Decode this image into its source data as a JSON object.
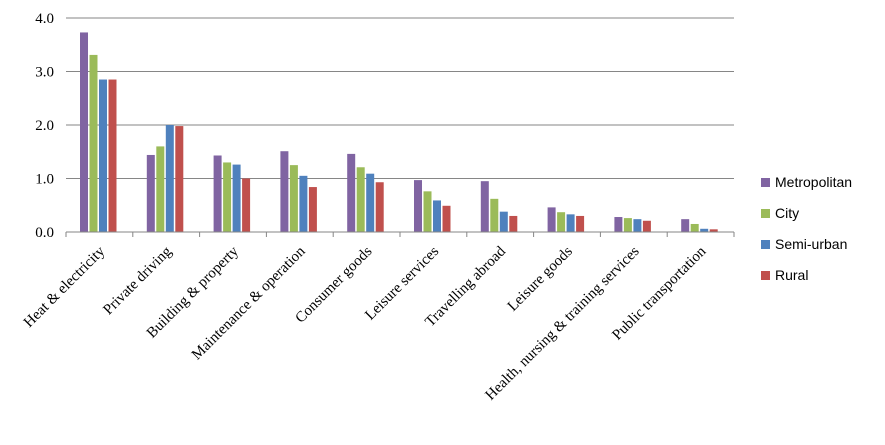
{
  "chart_data": {
    "type": "bar",
    "title": "",
    "xlabel": "",
    "ylabel": "",
    "ylim": [
      0,
      4
    ],
    "yticks": [
      "0.0",
      "1.0",
      "2.0",
      "3.0",
      "4.0"
    ],
    "grid": true,
    "legend_position": "right",
    "categories": [
      "Heat & electricity",
      "Private driving",
      "Building & property",
      "Maintenance & operation",
      "Consumer goods",
      "Leisure services",
      "Travelling abroad",
      "Leisure goods",
      "Health, nursing & training services",
      "Public transportation"
    ],
    "series": [
      {
        "name": "Metropolitan",
        "color": "#8064A2",
        "values": [
          3.73,
          1.44,
          1.43,
          1.51,
          1.46,
          0.97,
          0.95,
          0.46,
          0.28,
          0.24
        ]
      },
      {
        "name": "City",
        "color": "#9BBB59",
        "values": [
          3.31,
          1.6,
          1.3,
          1.25,
          1.21,
          0.76,
          0.62,
          0.37,
          0.26,
          0.15
        ]
      },
      {
        "name": "Semi-urban",
        "color": "#4F81BD",
        "values": [
          2.85,
          2.0,
          1.26,
          1.05,
          1.09,
          0.59,
          0.38,
          0.33,
          0.24,
          0.06
        ]
      },
      {
        "name": "Rural",
        "color": "#C0504D",
        "values": [
          2.85,
          1.98,
          1.0,
          0.84,
          0.93,
          0.49,
          0.3,
          0.3,
          0.21,
          0.05
        ]
      }
    ]
  }
}
